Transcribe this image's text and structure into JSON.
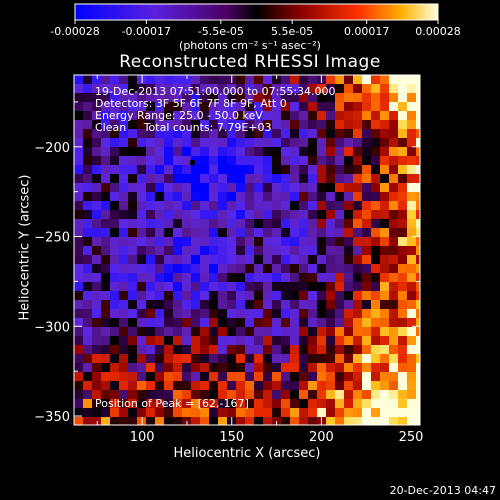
{
  "chart_data": {
    "type": "heatmap",
    "title": "Reconstructed RHESSI Image",
    "xlabel": "Heliocentric X (arcsec)",
    "ylabel": "Heliocentric Y (arcsec)",
    "xlim": [
      62,
      255
    ],
    "ylim": [
      -355,
      -160
    ],
    "xticks": [
      100,
      150,
      200,
      250
    ],
    "yticks": [
      -200,
      -250,
      -300,
      -350
    ],
    "colorbar": {
      "label": "(photons cm⁻² s⁻¹ asec⁻²)",
      "ticks": [
        "-0.00028",
        "-0.00017",
        "-5.5e-05",
        "5.5e-05",
        "0.00017",
        "0.00028"
      ],
      "min": -0.00028,
      "max": 0.00028
    },
    "annotations": {
      "time_range": "19-Dec-2013 07:51:00.000 to 07:55:34.000",
      "detectors": "Detectors: 3F 5F 6F 7F 8F 9F, Att 0",
      "energy": "Energy Range: 25.0 - 50.0 keV",
      "clean": "Clean     Total counts: 7.79E+03",
      "peak": "Position of Peak = [62,-167]"
    },
    "timestamp": "20-Dec-2013 04:47"
  }
}
